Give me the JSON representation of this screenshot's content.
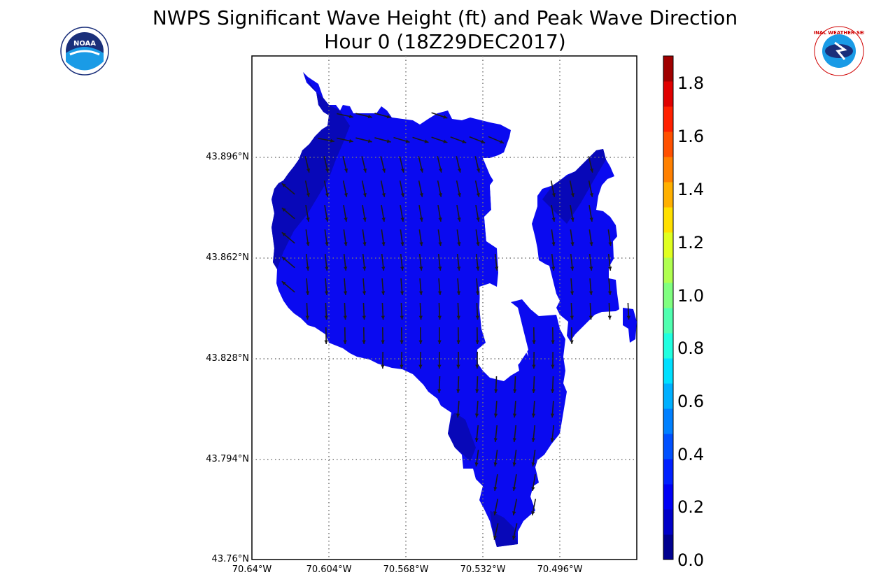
{
  "header": {
    "title_line1": "NWPS Significant Wave Height (ft) and Peak Wave Direction",
    "title_line2": "Hour 0 (18Z29DEC2017)"
  },
  "logos": {
    "left": {
      "icon": "noaa-logo",
      "text": "NOAA"
    },
    "right": {
      "icon": "nws-logo",
      "text": "NATIONAL WEATHER SERVICE"
    }
  },
  "map": {
    "lat_labels": [
      "43.896°N",
      "43.862°N",
      "43.828°N",
      "43.794°N",
      "43.76°N"
    ],
    "lon_labels": [
      "70.64°W",
      "70.604°W",
      "70.568°W",
      "70.532°W",
      "70.496°W"
    ],
    "grid": true,
    "field_color": "#0a0af0",
    "shallow_color": "#0808b8",
    "arrow_color": "#1a1a1a"
  },
  "colorbar": {
    "labels": [
      "1.8",
      "1.6",
      "1.4",
      "1.2",
      "1.0",
      "0.8",
      "0.6",
      "0.4",
      "0.2",
      "0.0"
    ],
    "colors": [
      "#00008f",
      "#0000c8",
      "#0000f5",
      "#0020ff",
      "#0050ff",
      "#0080ff",
      "#00b0ff",
      "#00e0ff",
      "#20ffe0",
      "#50ffb0",
      "#80ff80",
      "#b0ff50",
      "#e0ff20",
      "#ffe000",
      "#ffb000",
      "#ff8000",
      "#ff5000",
      "#ff2000",
      "#e00000",
      "#a00000"
    ]
  }
}
